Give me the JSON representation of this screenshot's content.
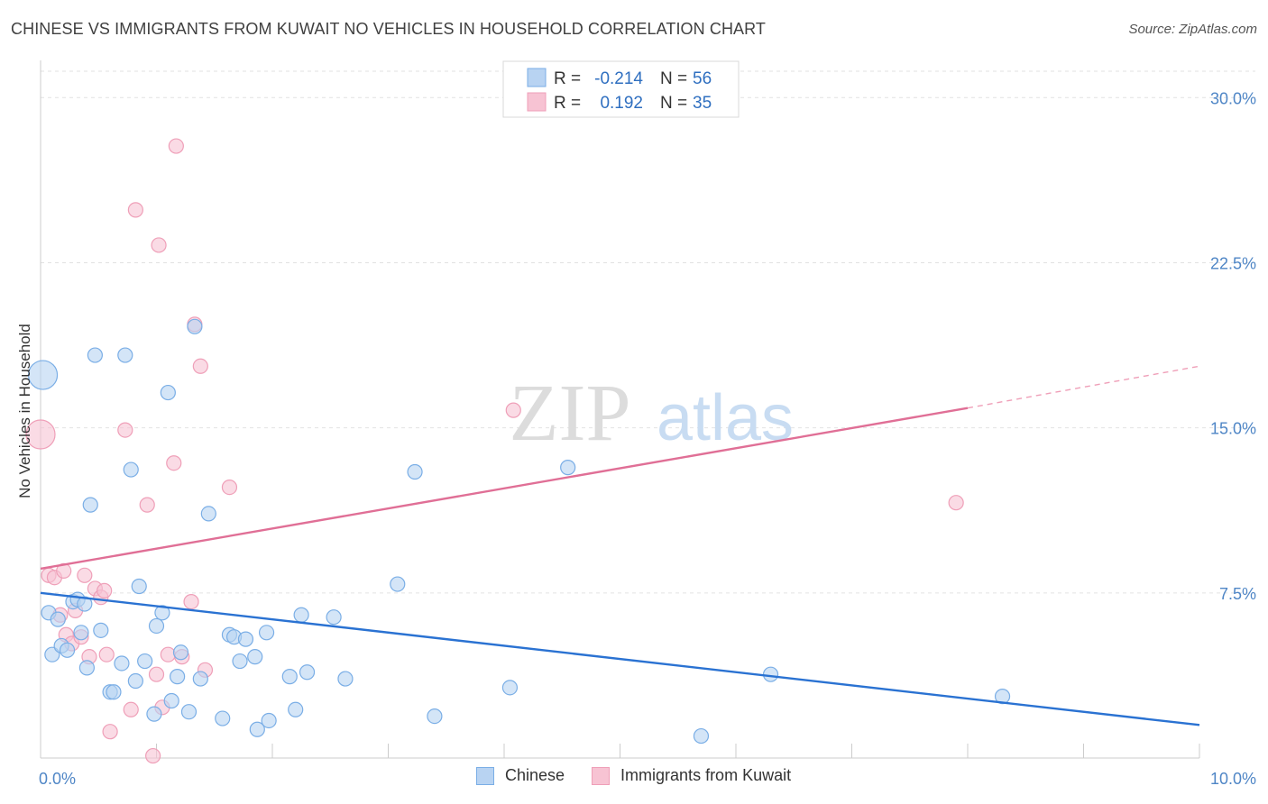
{
  "title": "CHINESE VS IMMIGRANTS FROM KUWAIT NO VEHICLES IN HOUSEHOLD CORRELATION CHART",
  "source": "Source: ZipAtlas.com",
  "watermark": {
    "zip": "ZIP",
    "atlas": "atlas"
  },
  "colors": {
    "blue_fill": "#b8d3f2",
    "blue_stroke": "#7aaee6",
    "blue_line": "#2a72d2",
    "pink_fill": "#f7c3d3",
    "pink_stroke": "#ef9fb8",
    "pink_line": "#e06f96",
    "tick_text": "#4f86c6",
    "grid": "#e2e2e2"
  },
  "legend_top": [
    {
      "r_label": "R =",
      "r_value": "-0.214",
      "n_label": "N =",
      "n_value": "56"
    },
    {
      "r_label": "R =",
      "r_value": "0.192",
      "n_label": "N =",
      "n_value": "35"
    }
  ],
  "chart_data": {
    "type": "scatter",
    "title": "CHINESE VS IMMIGRANTS FROM KUWAIT NO VEHICLES IN HOUSEHOLD CORRELATION CHART",
    "xlabel": "",
    "ylabel": "No Vehicles in Household",
    "xlim": [
      0,
      10
    ],
    "ylim": [
      0,
      31.2
    ],
    "x_tick_labels": [
      "0.0%",
      "10.0%"
    ],
    "y_ticks": [
      7.5,
      15.0,
      22.5,
      30.0
    ],
    "y_tick_labels": [
      "7.5%",
      "15.0%",
      "22.5%",
      "30.0%"
    ],
    "legend": [
      "Chinese",
      "Immigrants from Kuwait"
    ],
    "series": [
      {
        "name": "Chinese",
        "r": -0.214,
        "n": 56,
        "trend": {
          "x0": 0,
          "y0": 7.5,
          "x1": 10,
          "y1": 1.5
        },
        "points": [
          {
            "x": 0.02,
            "y": 17.4,
            "big": true
          },
          {
            "x": 0.07,
            "y": 6.6
          },
          {
            "x": 0.1,
            "y": 4.7
          },
          {
            "x": 0.15,
            "y": 6.3
          },
          {
            "x": 0.18,
            "y": 5.1
          },
          {
            "x": 0.23,
            "y": 4.9
          },
          {
            "x": 0.28,
            "y": 7.1
          },
          {
            "x": 0.32,
            "y": 7.2
          },
          {
            "x": 0.35,
            "y": 5.7
          },
          {
            "x": 0.38,
            "y": 7.0
          },
          {
            "x": 0.4,
            "y": 4.1
          },
          {
            "x": 0.43,
            "y": 11.5
          },
          {
            "x": 0.47,
            "y": 18.3
          },
          {
            "x": 0.52,
            "y": 5.8
          },
          {
            "x": 0.6,
            "y": 3.0
          },
          {
            "x": 0.63,
            "y": 3.0
          },
          {
            "x": 0.7,
            "y": 4.3
          },
          {
            "x": 0.73,
            "y": 18.3
          },
          {
            "x": 0.78,
            "y": 13.1
          },
          {
            "x": 0.82,
            "y": 3.5
          },
          {
            "x": 0.85,
            "y": 7.8
          },
          {
            "x": 0.9,
            "y": 4.4
          },
          {
            "x": 0.98,
            "y": 2.0
          },
          {
            "x": 1.0,
            "y": 6.0
          },
          {
            "x": 1.05,
            "y": 6.6
          },
          {
            "x": 1.1,
            "y": 16.6
          },
          {
            "x": 1.13,
            "y": 2.6
          },
          {
            "x": 1.18,
            "y": 3.7
          },
          {
            "x": 1.21,
            "y": 4.8
          },
          {
            "x": 1.28,
            "y": 2.1
          },
          {
            "x": 1.33,
            "y": 19.6
          },
          {
            "x": 1.38,
            "y": 3.6
          },
          {
            "x": 1.45,
            "y": 11.1
          },
          {
            "x": 1.57,
            "y": 1.8
          },
          {
            "x": 1.63,
            "y": 5.6
          },
          {
            "x": 1.67,
            "y": 5.5
          },
          {
            "x": 1.72,
            "y": 4.4
          },
          {
            "x": 1.77,
            "y": 5.4
          },
          {
            "x": 1.85,
            "y": 4.6
          },
          {
            "x": 1.87,
            "y": 1.3
          },
          {
            "x": 1.95,
            "y": 5.7
          },
          {
            "x": 1.97,
            "y": 1.7
          },
          {
            "x": 2.15,
            "y": 3.7
          },
          {
            "x": 2.2,
            "y": 2.2
          },
          {
            "x": 2.25,
            "y": 6.5
          },
          {
            "x": 2.3,
            "y": 3.9
          },
          {
            "x": 2.53,
            "y": 6.4
          },
          {
            "x": 2.63,
            "y": 3.6
          },
          {
            "x": 3.08,
            "y": 7.9
          },
          {
            "x": 3.23,
            "y": 13.0
          },
          {
            "x": 3.4,
            "y": 1.9
          },
          {
            "x": 4.05,
            "y": 3.2
          },
          {
            "x": 4.55,
            "y": 13.2
          },
          {
            "x": 5.7,
            "y": 1.0
          },
          {
            "x": 6.3,
            "y": 3.8
          },
          {
            "x": 8.3,
            "y": 2.8
          }
        ]
      },
      {
        "name": "Immigrants from Kuwait",
        "r": 0.192,
        "n": 35,
        "trend": {
          "x0": 0,
          "y0": 8.6,
          "x1": 8.0,
          "y1": 15.9
        },
        "trend_ext": {
          "x0": 8.0,
          "y0": 15.9,
          "x1": 10,
          "y1": 17.8
        },
        "points": [
          {
            "x": 0.0,
            "y": 14.7,
            "big": true
          },
          {
            "x": 0.07,
            "y": 8.3
          },
          {
            "x": 0.12,
            "y": 8.2
          },
          {
            "x": 0.17,
            "y": 6.5
          },
          {
            "x": 0.2,
            "y": 8.5
          },
          {
            "x": 0.22,
            "y": 5.6
          },
          {
            "x": 0.27,
            "y": 5.2
          },
          {
            "x": 0.3,
            "y": 6.7
          },
          {
            "x": 0.35,
            "y": 5.5
          },
          {
            "x": 0.38,
            "y": 8.3
          },
          {
            "x": 0.42,
            "y": 4.6
          },
          {
            "x": 0.47,
            "y": 7.7
          },
          {
            "x": 0.52,
            "y": 7.3
          },
          {
            "x": 0.55,
            "y": 7.6
          },
          {
            "x": 0.57,
            "y": 4.7
          },
          {
            "x": 0.6,
            "y": 1.2
          },
          {
            "x": 0.73,
            "y": 14.9
          },
          {
            "x": 0.78,
            "y": 2.2
          },
          {
            "x": 0.82,
            "y": 24.9
          },
          {
            "x": 0.92,
            "y": 11.5
          },
          {
            "x": 0.97,
            "y": 0.1
          },
          {
            "x": 1.0,
            "y": 3.8
          },
          {
            "x": 1.02,
            "y": 23.3
          },
          {
            "x": 1.05,
            "y": 2.3
          },
          {
            "x": 1.1,
            "y": 4.7
          },
          {
            "x": 1.15,
            "y": 13.4
          },
          {
            "x": 1.17,
            "y": 27.8
          },
          {
            "x": 1.22,
            "y": 4.6
          },
          {
            "x": 1.3,
            "y": 7.1
          },
          {
            "x": 1.33,
            "y": 19.7
          },
          {
            "x": 1.38,
            "y": 17.8
          },
          {
            "x": 1.42,
            "y": 4.0
          },
          {
            "x": 1.63,
            "y": 12.3
          },
          {
            "x": 4.08,
            "y": 15.8
          },
          {
            "x": 7.9,
            "y": 11.6
          }
        ]
      }
    ]
  }
}
